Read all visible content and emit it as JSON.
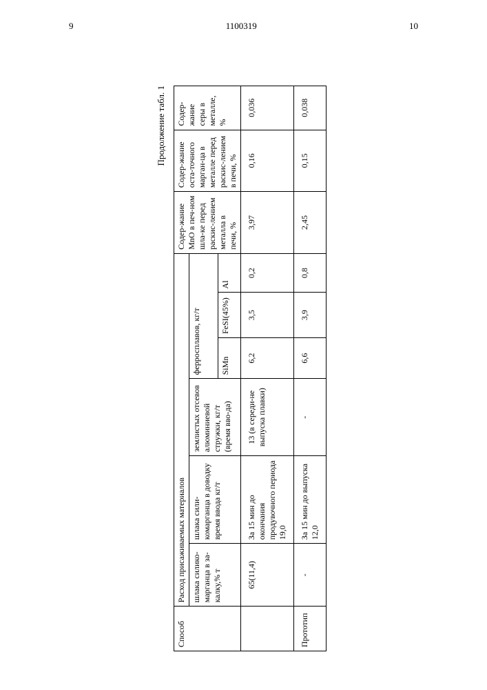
{
  "header": {
    "page_left": "9",
    "doc_number": "1100319",
    "page_right": "10"
  },
  "continuation_label": "Продолжение табл. 1",
  "columns": {
    "method": "Способ",
    "materials_group": "Расход присаживаемых материалов",
    "col1": "шлака силико-марганца в за-калку,% т",
    "col2": "шлака сили-комарганца в доводку\nвремя ввода кг/т",
    "col3": "землистых отсевов алюминиевой стружки, кг/т\n(время вво-да)",
    "ferro_group": "ферросплавов, кг/т",
    "ferro_simn": "SiMn",
    "ferro_fesi": "FeSI(45%)",
    "ferro_al": "Al",
    "mno": "Содер-жание MnO в печ-ном шла-ке перед раскис-лением металла в печи, %",
    "mn_residual": "Содер-жание оста-точного марган-ца в металле перед раскис-лением в печи, %",
    "sulfur": "Содер-жание серы в металле, %"
  },
  "rows": [
    {
      "method_label": "",
      "zakalka": "65(11,4)",
      "dovodka": "За 15 мин до окончания продувочного периода    19,0",
      "aluminum": "13\n(в середи-не выпуска плавки)",
      "simn": "6,2",
      "fesi": "3,5",
      "al": "0,2",
      "mno_val": "3,97",
      "mn_val": "0,16",
      "s_val": "0,036"
    },
    {
      "method_label": "Прототип",
      "zakalka": "-",
      "dovodka": "За 15 мин до выпуска    12,0",
      "aluminum": "-",
      "simn": "6,6",
      "fesi": "3,9",
      "al": "0,8",
      "mno_val": "2,45",
      "mn_val": "0,15",
      "s_val": "0,038"
    }
  ]
}
